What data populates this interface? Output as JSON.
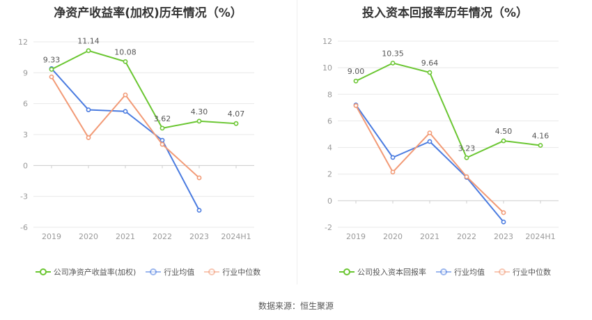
{
  "source_label": "数据来源：恒生聚源",
  "colors": {
    "company": "#6ac631",
    "average": "#4a7be0",
    "median": "#f29a76",
    "grid": "#e8e8e8",
    "axis": "#cccccc"
  },
  "chart_data": [
    {
      "type": "line",
      "title": "净资产收益率(加权)历年情况（%）",
      "categories": [
        "2019",
        "2020",
        "2021",
        "2022",
        "2023",
        "2024H1"
      ],
      "ylim": [
        -6,
        12
      ],
      "yticks": [
        "12",
        "9",
        "6",
        "3",
        "0",
        "-3",
        "-6"
      ],
      "grid": true,
      "legend_position": "bottom",
      "series": [
        {
          "name": "公司净资产收益率(加权)",
          "values": [
            9.33,
            11.14,
            10.08,
            3.62,
            4.3,
            4.07
          ],
          "labels": [
            "9.33",
            "11.14",
            "10.08",
            "3.62",
            "4.30",
            "4.07"
          ]
        },
        {
          "name": "行业均值",
          "values": [
            9.4,
            5.4,
            5.25,
            2.45,
            -4.35,
            null
          ]
        },
        {
          "name": "行业中位数",
          "values": [
            8.6,
            2.7,
            6.85,
            2.05,
            -1.2,
            null
          ]
        }
      ]
    },
    {
      "type": "line",
      "title": "投入资本回报率历年情况（%）",
      "categories": [
        "2019",
        "2020",
        "2021",
        "2022",
        "2023",
        "2024H1"
      ],
      "ylim": [
        -2,
        12
      ],
      "yticks": [
        "12",
        "10",
        "8",
        "6",
        "4",
        "2",
        "0",
        "-2"
      ],
      "grid": true,
      "legend_position": "bottom",
      "series": [
        {
          "name": "公司投入资本回报率",
          "values": [
            9.0,
            10.35,
            9.64,
            3.23,
            4.5,
            4.16
          ],
          "labels": [
            "9.00",
            "10.35",
            "9.64",
            "3.23",
            "4.50",
            "4.16"
          ]
        },
        {
          "name": "行业均值",
          "values": [
            7.2,
            3.25,
            4.45,
            1.75,
            -1.6,
            null
          ]
        },
        {
          "name": "行业中位数",
          "values": [
            7.15,
            2.15,
            5.1,
            1.8,
            -0.9,
            null
          ]
        }
      ]
    }
  ]
}
